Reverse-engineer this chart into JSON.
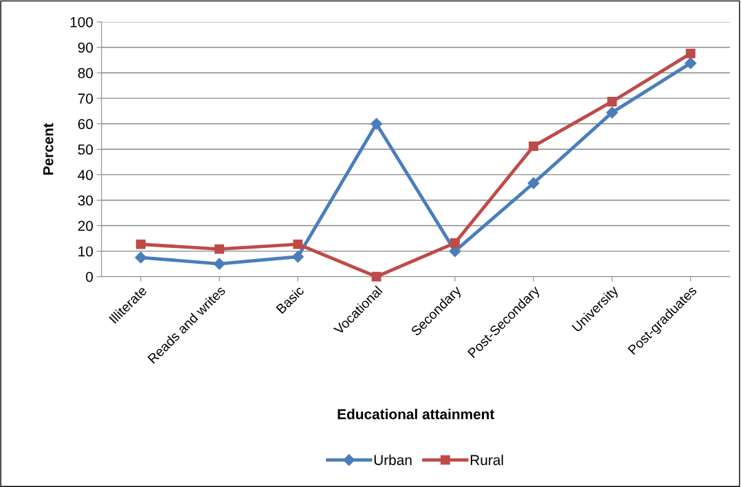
{
  "chart_data": {
    "type": "line",
    "xlabel": "Educational attainment",
    "ylabel": "Percent",
    "categories": [
      "Illiterate",
      "Reads and writes",
      "Basic",
      "Vocational",
      "Secondary",
      "Post-Secondary",
      "University",
      "Post-graduates"
    ],
    "series": [
      {
        "name": "Urban",
        "color": "#4a7ebb",
        "marker": "diamond",
        "values": [
          7.5,
          5,
          7.8,
          60,
          10,
          36.7,
          64.4,
          83.8
        ]
      },
      {
        "name": "Rural",
        "color": "#be4b48",
        "marker": "square",
        "values": [
          12.7,
          10.8,
          12.7,
          0,
          13.2,
          51.2,
          68.7,
          87.6
        ]
      }
    ],
    "ylim": [
      0,
      100
    ],
    "yticks": [
      0,
      10,
      20,
      30,
      40,
      50,
      60,
      70,
      80,
      90,
      100
    ],
    "grid": "y",
    "legend": "bottom",
    "line_style": "solid"
  }
}
